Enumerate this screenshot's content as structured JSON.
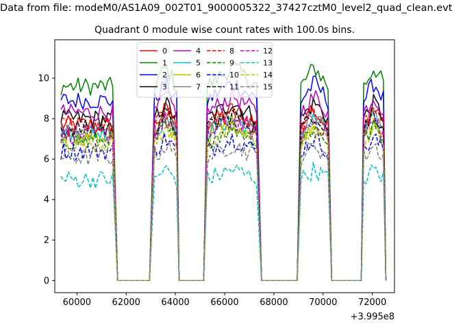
{
  "suptitle": "Data from file: modeM0/AS1A09_002T01_9000005322_37427cztM0_level2_quad_clean.evt",
  "title": "Quadrant 0 module wise count rates with 100.0s bins.",
  "offset_text": "+3.995e8",
  "chart_data": {
    "type": "line",
    "title": "Quadrant 0 module wise count rates with 100.0s bins.",
    "xlabel": "",
    "ylabel": "",
    "x_offset": 399500000,
    "xlim": [
      59100,
      72900
    ],
    "ylim": [
      -0.6,
      11.9
    ],
    "xticks": [
      60000,
      62000,
      64000,
      66000,
      68000,
      70000,
      72000
    ],
    "xtick_labels": [
      "60000",
      "62000",
      "64000",
      "66000",
      "68000",
      "70000",
      "72000"
    ],
    "yticks": [
      0,
      2,
      4,
      6,
      8,
      10
    ],
    "ytick_labels": [
      "0",
      "2",
      "4",
      "6",
      "8",
      "10"
    ],
    "legend_position": "upper center",
    "segments": [
      {
        "start": 59350,
        "end": 61450,
        "ramp_to": 61650
      },
      {
        "start": 63150,
        "end": 64050,
        "ramp_from": 62950,
        "ramp_to": 64150
      },
      {
        "start": 65300,
        "end": 67350,
        "ramp_from": 65150,
        "ramp_to": 67500
      },
      {
        "start": 69100,
        "end": 70200,
        "ramp_from": 68950,
        "ramp_to": 70350
      },
      {
        "start": 71650,
        "end": 72500,
        "ramp_from": 71550,
        "ramp_to": 72550
      }
    ],
    "series": [
      {
        "name": "0",
        "color": "#ff0000",
        "style": "solid",
        "level": 7.7
      },
      {
        "name": "1",
        "color": "#008000",
        "style": "solid",
        "level": 9.6
      },
      {
        "name": "2",
        "color": "#0000ff",
        "style": "solid",
        "level": 8.9
      },
      {
        "name": "3",
        "color": "#000000",
        "style": "solid",
        "level": 8.0
      },
      {
        "name": "4",
        "color": "#bf00bf",
        "style": "solid",
        "level": 8.3
      },
      {
        "name": "5",
        "color": "#00bfbf",
        "style": "solid",
        "level": 7.3
      },
      {
        "name": "6",
        "color": "#bfbf00",
        "style": "solid",
        "level": 7.1
      },
      {
        "name": "7",
        "color": "#808080",
        "style": "solid",
        "level": 7.4
      },
      {
        "name": "8",
        "color": "#ff0000",
        "style": "dashed",
        "level": 7.6
      },
      {
        "name": "9",
        "color": "#008000",
        "style": "dashed",
        "level": 6.9
      },
      {
        "name": "10",
        "color": "#0000ff",
        "style": "dashed",
        "level": 6.4
      },
      {
        "name": "11",
        "color": "#000000",
        "style": "dashed",
        "level": 7.5
      },
      {
        "name": "12",
        "color": "#bf00bf",
        "style": "dashed",
        "level": 7.2
      },
      {
        "name": "13",
        "color": "#00bfbf",
        "style": "dashed",
        "level": 5.0
      },
      {
        "name": "14",
        "color": "#bfbf00",
        "style": "dashed",
        "level": 6.8
      },
      {
        "name": "15",
        "color": "#808080",
        "style": "dashed",
        "level": 6.1
      }
    ]
  }
}
